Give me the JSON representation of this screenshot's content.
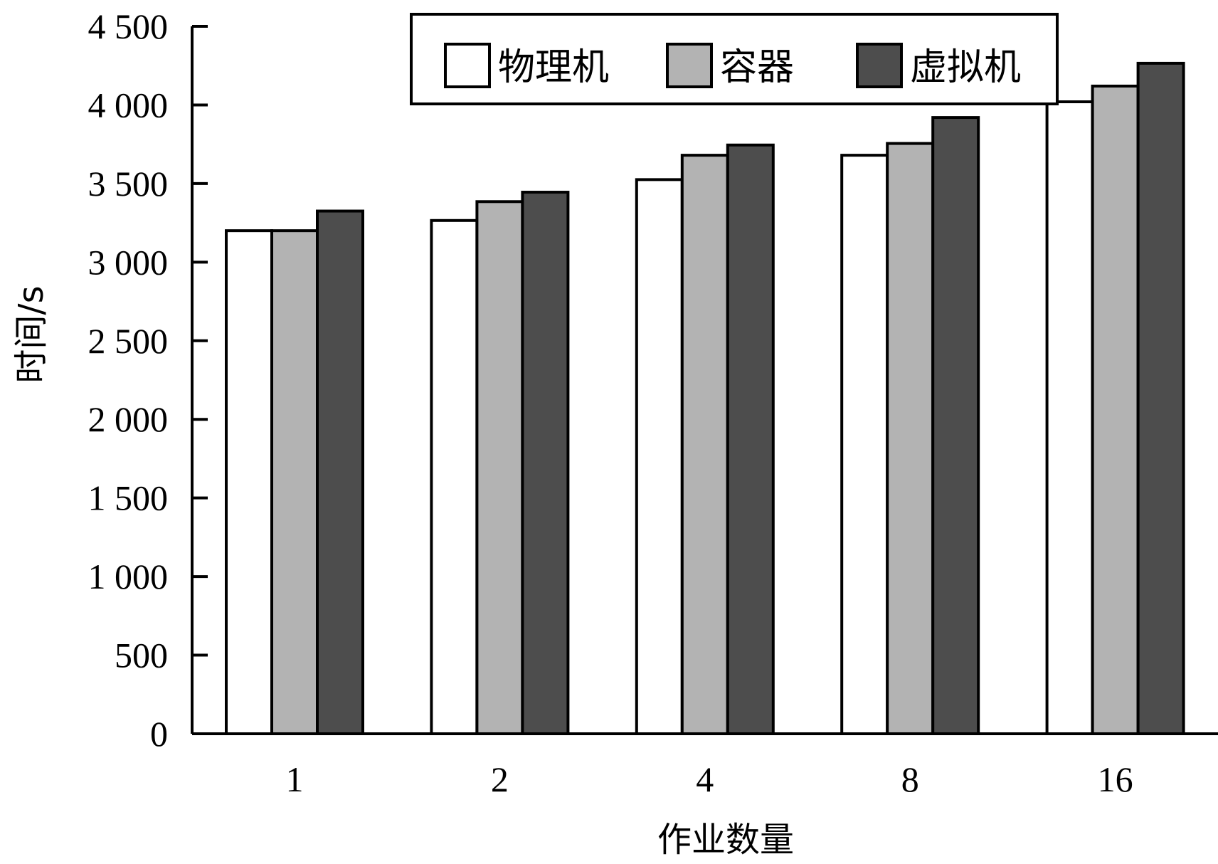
{
  "chart_data": {
    "type": "bar",
    "title": "",
    "xlabel": "作业数量",
    "ylabel": "时间/s",
    "categories": [
      "1",
      "2",
      "4",
      "8",
      "16"
    ],
    "series": [
      {
        "name": "物理机",
        "color": "#ffffff",
        "values": [
          3200,
          3265,
          3525,
          3680,
          4020
        ]
      },
      {
        "name": "容器",
        "color": "#b3b3b3",
        "values": [
          3200,
          3385,
          3680,
          3755,
          4120
        ]
      },
      {
        "name": "虚拟机",
        "color": "#4d4d4d",
        "values": [
          3325,
          3445,
          3745,
          3920,
          4265
        ]
      }
    ],
    "ylim": [
      0,
      4500
    ],
    "yticks": [
      0,
      500,
      1000,
      1500,
      2000,
      2500,
      3000,
      3500,
      4000,
      4500
    ],
    "ytick_labels": [
      "0",
      "500",
      "1 000",
      "1 500",
      "2 000",
      "2 500",
      "3 000",
      "3 500",
      "4 000",
      "4 500"
    ],
    "grid": false,
    "legend_position": "top-right"
  }
}
